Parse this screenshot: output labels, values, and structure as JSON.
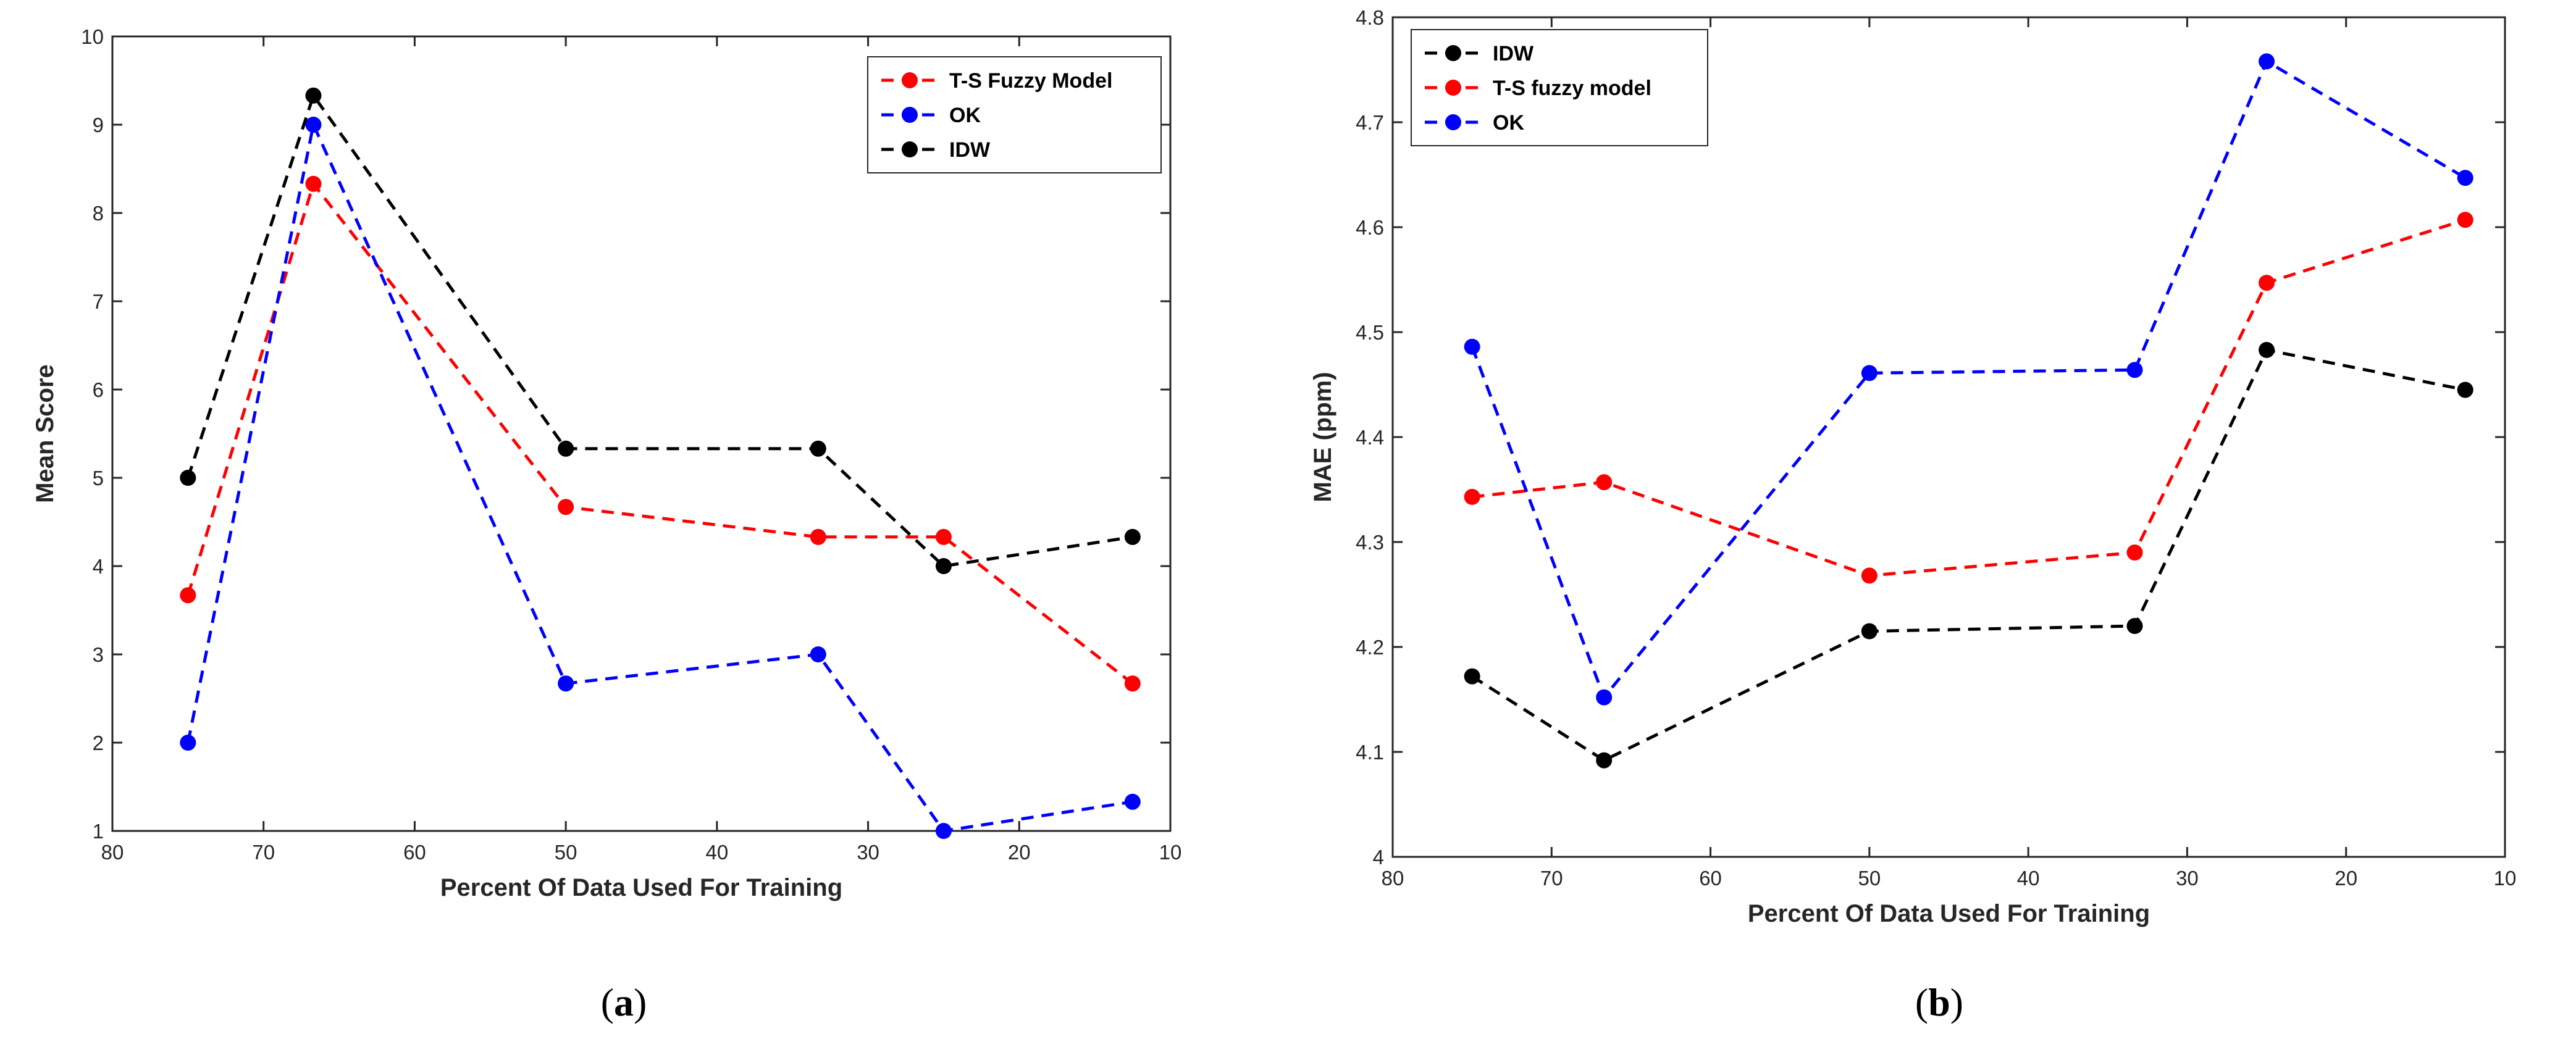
{
  "chart_data": [
    {
      "type": "line",
      "caption_open": "(",
      "caption": "a",
      "caption_close": ")",
      "xlabel": "Percent Of Data Used For Training",
      "ylabel": "Mean Score",
      "xlim": [
        80,
        10
      ],
      "ylim": [
        1,
        10
      ],
      "xticks": [
        "80",
        "70",
        "60",
        "50",
        "40",
        "30",
        "20",
        "10"
      ],
      "yticks": [
        "1",
        "2",
        "3",
        "4",
        "5",
        "6",
        "7",
        "8",
        "9",
        "10"
      ],
      "legend_position": "top-right",
      "x": [
        75,
        66.7,
        50,
        33.3,
        25,
        12.5
      ],
      "series": [
        {
          "name": "T-S Fuzzy Model",
          "color": "#ff0000",
          "values": [
            3.67,
            8.33,
            4.67,
            4.33,
            4.33,
            2.67
          ]
        },
        {
          "name": "OK",
          "color": "#0000ff",
          "values": [
            2.0,
            9.0,
            2.67,
            3.0,
            1.0,
            1.33
          ]
        },
        {
          "name": "IDW",
          "color": "#000000",
          "values": [
            5.0,
            9.33,
            5.33,
            5.33,
            4.0,
            4.33
          ]
        }
      ]
    },
    {
      "type": "line",
      "caption_open": "(",
      "caption": "b",
      "caption_close": ")",
      "xlabel": "Percent Of Data Used For Training",
      "ylabel": "MAE (ppm)",
      "xlim": [
        80,
        10
      ],
      "ylim": [
        4,
        4.8
      ],
      "xticks": [
        "80",
        "70",
        "60",
        "50",
        "40",
        "30",
        "20",
        "10"
      ],
      "yticks": [
        "4",
        "4.1",
        "4.2",
        "4.3",
        "4.4",
        "4.5",
        "4.6",
        "4.7",
        "4.8"
      ],
      "legend_position": "top-left",
      "x": [
        75,
        66.7,
        50,
        33.3,
        25,
        12.5
      ],
      "series": [
        {
          "name": "IDW",
          "color": "#000000",
          "values": [
            4.172,
            4.092,
            4.215,
            4.22,
            4.483,
            4.445
          ]
        },
        {
          "name": "T-S fuzzy model",
          "color": "#ff0000",
          "values": [
            4.343,
            4.357,
            4.268,
            4.29,
            4.547,
            4.607
          ]
        },
        {
          "name": "OK",
          "color": "#0000ff",
          "values": [
            4.486,
            4.152,
            4.461,
            4.464,
            4.758,
            4.647
          ]
        }
      ]
    }
  ]
}
